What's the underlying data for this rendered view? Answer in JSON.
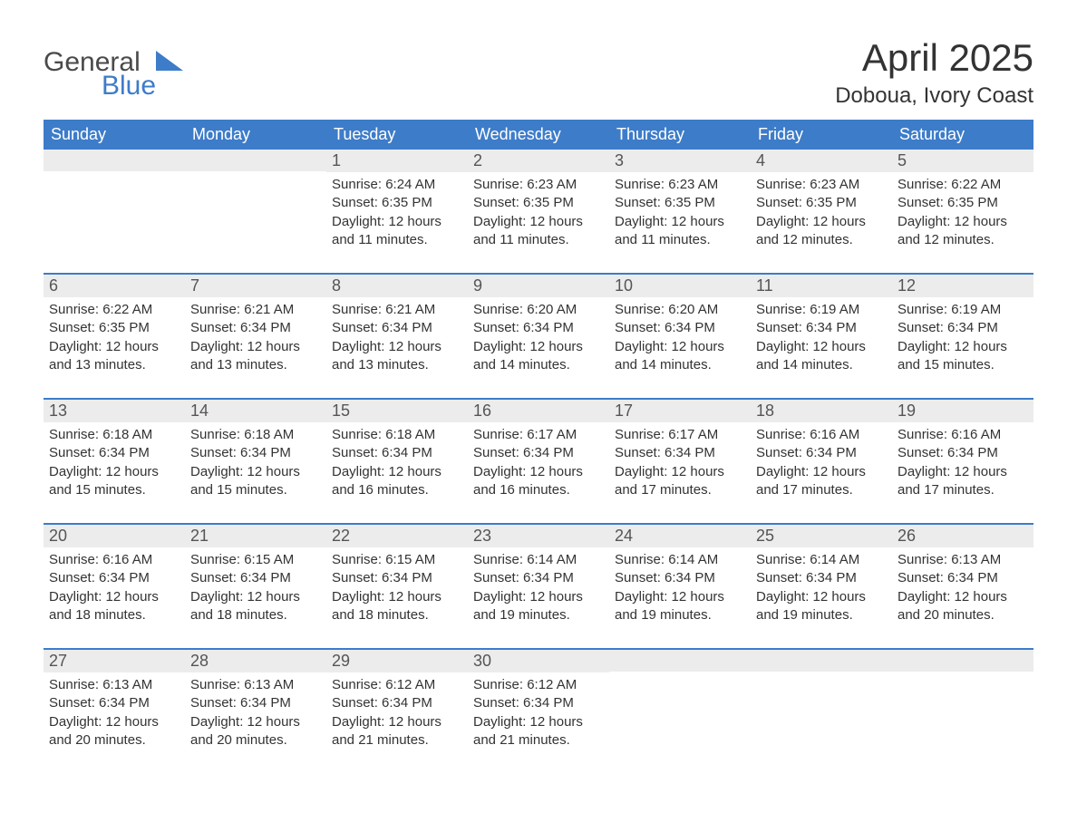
{
  "logo": {
    "word1": "General",
    "word2": "Blue",
    "triangle_color": "#3d7cc9",
    "text_color_1": "#4a4a4a",
    "text_color_2": "#3d7cc9"
  },
  "title": {
    "month": "April 2025",
    "location": "Doboua, Ivory Coast"
  },
  "colors": {
    "header_bg": "#3d7cc9",
    "header_text": "#ffffff",
    "daynum_bg": "#ececec",
    "week_border": "#3d7cc9",
    "body_text": "#333333",
    "daynum_text": "#555555",
    "page_bg": "#ffffff"
  },
  "fonts": {
    "month_title_size_pt": 32,
    "location_size_pt": 18,
    "header_cell_size_pt": 14,
    "daynum_size_pt": 14,
    "body_size_pt": 11
  },
  "weekdays": [
    "Sunday",
    "Monday",
    "Tuesday",
    "Wednesday",
    "Thursday",
    "Friday",
    "Saturday"
  ],
  "weeks": [
    [
      {
        "day": "",
        "sunrise": "",
        "sunset": "",
        "daylight1": "",
        "daylight2": ""
      },
      {
        "day": "",
        "sunrise": "",
        "sunset": "",
        "daylight1": "",
        "daylight2": ""
      },
      {
        "day": "1",
        "sunrise": "Sunrise: 6:24 AM",
        "sunset": "Sunset: 6:35 PM",
        "daylight1": "Daylight: 12 hours",
        "daylight2": "and 11 minutes."
      },
      {
        "day": "2",
        "sunrise": "Sunrise: 6:23 AM",
        "sunset": "Sunset: 6:35 PM",
        "daylight1": "Daylight: 12 hours",
        "daylight2": "and 11 minutes."
      },
      {
        "day": "3",
        "sunrise": "Sunrise: 6:23 AM",
        "sunset": "Sunset: 6:35 PM",
        "daylight1": "Daylight: 12 hours",
        "daylight2": "and 11 minutes."
      },
      {
        "day": "4",
        "sunrise": "Sunrise: 6:23 AM",
        "sunset": "Sunset: 6:35 PM",
        "daylight1": "Daylight: 12 hours",
        "daylight2": "and 12 minutes."
      },
      {
        "day": "5",
        "sunrise": "Sunrise: 6:22 AM",
        "sunset": "Sunset: 6:35 PM",
        "daylight1": "Daylight: 12 hours",
        "daylight2": "and 12 minutes."
      }
    ],
    [
      {
        "day": "6",
        "sunrise": "Sunrise: 6:22 AM",
        "sunset": "Sunset: 6:35 PM",
        "daylight1": "Daylight: 12 hours",
        "daylight2": "and 13 minutes."
      },
      {
        "day": "7",
        "sunrise": "Sunrise: 6:21 AM",
        "sunset": "Sunset: 6:34 PM",
        "daylight1": "Daylight: 12 hours",
        "daylight2": "and 13 minutes."
      },
      {
        "day": "8",
        "sunrise": "Sunrise: 6:21 AM",
        "sunset": "Sunset: 6:34 PM",
        "daylight1": "Daylight: 12 hours",
        "daylight2": "and 13 minutes."
      },
      {
        "day": "9",
        "sunrise": "Sunrise: 6:20 AM",
        "sunset": "Sunset: 6:34 PM",
        "daylight1": "Daylight: 12 hours",
        "daylight2": "and 14 minutes."
      },
      {
        "day": "10",
        "sunrise": "Sunrise: 6:20 AM",
        "sunset": "Sunset: 6:34 PM",
        "daylight1": "Daylight: 12 hours",
        "daylight2": "and 14 minutes."
      },
      {
        "day": "11",
        "sunrise": "Sunrise: 6:19 AM",
        "sunset": "Sunset: 6:34 PM",
        "daylight1": "Daylight: 12 hours",
        "daylight2": "and 14 minutes."
      },
      {
        "day": "12",
        "sunrise": "Sunrise: 6:19 AM",
        "sunset": "Sunset: 6:34 PM",
        "daylight1": "Daylight: 12 hours",
        "daylight2": "and 15 minutes."
      }
    ],
    [
      {
        "day": "13",
        "sunrise": "Sunrise: 6:18 AM",
        "sunset": "Sunset: 6:34 PM",
        "daylight1": "Daylight: 12 hours",
        "daylight2": "and 15 minutes."
      },
      {
        "day": "14",
        "sunrise": "Sunrise: 6:18 AM",
        "sunset": "Sunset: 6:34 PM",
        "daylight1": "Daylight: 12 hours",
        "daylight2": "and 15 minutes."
      },
      {
        "day": "15",
        "sunrise": "Sunrise: 6:18 AM",
        "sunset": "Sunset: 6:34 PM",
        "daylight1": "Daylight: 12 hours",
        "daylight2": "and 16 minutes."
      },
      {
        "day": "16",
        "sunrise": "Sunrise: 6:17 AM",
        "sunset": "Sunset: 6:34 PM",
        "daylight1": "Daylight: 12 hours",
        "daylight2": "and 16 minutes."
      },
      {
        "day": "17",
        "sunrise": "Sunrise: 6:17 AM",
        "sunset": "Sunset: 6:34 PM",
        "daylight1": "Daylight: 12 hours",
        "daylight2": "and 17 minutes."
      },
      {
        "day": "18",
        "sunrise": "Sunrise: 6:16 AM",
        "sunset": "Sunset: 6:34 PM",
        "daylight1": "Daylight: 12 hours",
        "daylight2": "and 17 minutes."
      },
      {
        "day": "19",
        "sunrise": "Sunrise: 6:16 AM",
        "sunset": "Sunset: 6:34 PM",
        "daylight1": "Daylight: 12 hours",
        "daylight2": "and 17 minutes."
      }
    ],
    [
      {
        "day": "20",
        "sunrise": "Sunrise: 6:16 AM",
        "sunset": "Sunset: 6:34 PM",
        "daylight1": "Daylight: 12 hours",
        "daylight2": "and 18 minutes."
      },
      {
        "day": "21",
        "sunrise": "Sunrise: 6:15 AM",
        "sunset": "Sunset: 6:34 PM",
        "daylight1": "Daylight: 12 hours",
        "daylight2": "and 18 minutes."
      },
      {
        "day": "22",
        "sunrise": "Sunrise: 6:15 AM",
        "sunset": "Sunset: 6:34 PM",
        "daylight1": "Daylight: 12 hours",
        "daylight2": "and 18 minutes."
      },
      {
        "day": "23",
        "sunrise": "Sunrise: 6:14 AM",
        "sunset": "Sunset: 6:34 PM",
        "daylight1": "Daylight: 12 hours",
        "daylight2": "and 19 minutes."
      },
      {
        "day": "24",
        "sunrise": "Sunrise: 6:14 AM",
        "sunset": "Sunset: 6:34 PM",
        "daylight1": "Daylight: 12 hours",
        "daylight2": "and 19 minutes."
      },
      {
        "day": "25",
        "sunrise": "Sunrise: 6:14 AM",
        "sunset": "Sunset: 6:34 PM",
        "daylight1": "Daylight: 12 hours",
        "daylight2": "and 19 minutes."
      },
      {
        "day": "26",
        "sunrise": "Sunrise: 6:13 AM",
        "sunset": "Sunset: 6:34 PM",
        "daylight1": "Daylight: 12 hours",
        "daylight2": "and 20 minutes."
      }
    ],
    [
      {
        "day": "27",
        "sunrise": "Sunrise: 6:13 AM",
        "sunset": "Sunset: 6:34 PM",
        "daylight1": "Daylight: 12 hours",
        "daylight2": "and 20 minutes."
      },
      {
        "day": "28",
        "sunrise": "Sunrise: 6:13 AM",
        "sunset": "Sunset: 6:34 PM",
        "daylight1": "Daylight: 12 hours",
        "daylight2": "and 20 minutes."
      },
      {
        "day": "29",
        "sunrise": "Sunrise: 6:12 AM",
        "sunset": "Sunset: 6:34 PM",
        "daylight1": "Daylight: 12 hours",
        "daylight2": "and 21 minutes."
      },
      {
        "day": "30",
        "sunrise": "Sunrise: 6:12 AM",
        "sunset": "Sunset: 6:34 PM",
        "daylight1": "Daylight: 12 hours",
        "daylight2": "and 21 minutes."
      },
      {
        "day": "",
        "sunrise": "",
        "sunset": "",
        "daylight1": "",
        "daylight2": ""
      },
      {
        "day": "",
        "sunrise": "",
        "sunset": "",
        "daylight1": "",
        "daylight2": ""
      },
      {
        "day": "",
        "sunrise": "",
        "sunset": "",
        "daylight1": "",
        "daylight2": ""
      }
    ]
  ]
}
